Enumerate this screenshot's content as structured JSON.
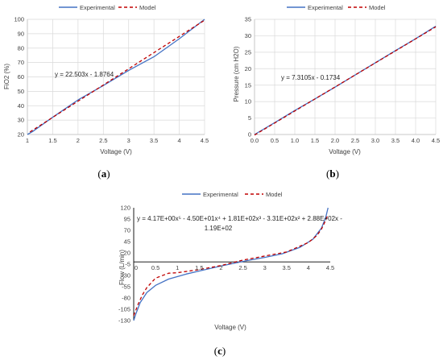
{
  "colors": {
    "experimental": "#4472c4",
    "model": "#c00000",
    "grid": "#d9d9d9",
    "axis": "#bfbfbf"
  },
  "chart_data": [
    {
      "type": "line",
      "panel": "(a)",
      "xlabel": "Voltage (V)",
      "ylabel": "FiO2 (%)",
      "xlim": [
        1,
        4.5
      ],
      "ylim": [
        20,
        100
      ],
      "xticks": [
        1,
        1.5,
        2,
        2.5,
        3,
        3.5,
        4,
        4.5
      ],
      "yticks": [
        20,
        30,
        40,
        50,
        60,
        70,
        80,
        90,
        100
      ],
      "grid": true,
      "legend": "top",
      "equation": "y = 22.503x - 1.8764",
      "series": [
        {
          "name": "Experimental",
          "style": "solid",
          "x": [
            1.0,
            1.1,
            1.5,
            2.0,
            2.5,
            3.0,
            3.5,
            4.0,
            4.5
          ],
          "y": [
            20.0,
            22.0,
            32.0,
            44.0,
            54.0,
            64.5,
            74.0,
            86.5,
            100.0
          ]
        },
        {
          "name": "Model",
          "style": "dashed",
          "x": [
            1.05,
            4.5
          ],
          "y": [
            21.75,
            99.39
          ]
        }
      ]
    },
    {
      "type": "line",
      "panel": "(b)",
      "xlabel": "Voltage (V)",
      "ylabel": "Pressure (cm H2O)",
      "xlim": [
        0,
        4.5
      ],
      "ylim": [
        0,
        35
      ],
      "xticks": [
        0.0,
        0.5,
        1.0,
        1.5,
        2.0,
        2.5,
        3.0,
        3.5,
        4.0,
        4.5
      ],
      "yticks": [
        0,
        5,
        10,
        15,
        20,
        25,
        30,
        35
      ],
      "grid": true,
      "legend": "top",
      "equation": "y = 7.3105x - 0.1734",
      "series": [
        {
          "name": "Experimental",
          "style": "solid",
          "x": [
            0.0,
            0.5,
            1.0,
            1.5,
            2.0,
            2.5,
            3.0,
            3.5,
            4.0,
            4.5
          ],
          "y": [
            0.0,
            3.6,
            7.3,
            10.8,
            14.4,
            18.1,
            21.8,
            25.5,
            29.1,
            32.9
          ]
        },
        {
          "name": "Model",
          "style": "dashed",
          "x": [
            0.0,
            4.5
          ],
          "y": [
            -0.17,
            32.72
          ]
        }
      ]
    },
    {
      "type": "line",
      "panel": "(c)",
      "xlabel": "Voltage (V)",
      "ylabel": "Flow (L/min)",
      "xlim": [
        0,
        4.5
      ],
      "ylim": [
        -130,
        120
      ],
      "xticks": [
        0,
        0.5,
        1,
        1.5,
        2,
        2.5,
        3,
        3.5,
        4,
        4.5
      ],
      "yticks": [
        120,
        95,
        70,
        45,
        20,
        -5,
        -30,
        -55,
        -80,
        -105,
        -130
      ],
      "grid": false,
      "legend": "top",
      "equation_line1": "y = 4.17E+00x⁵ - 4.50E+01x⁴ + 1.81E+02x³ - 3.31E+02x² + 2.88E+02x -",
      "equation_line2": "1.19E+02",
      "series": [
        {
          "name": "Experimental",
          "style": "solid",
          "x": [
            0.0,
            0.05,
            0.15,
            0.3,
            0.5,
            0.8,
            1.2,
            1.6,
            2.0,
            2.2,
            2.6,
            3.0,
            3.4,
            3.8,
            4.1,
            4.3,
            4.4,
            4.45
          ],
          "y": [
            -130,
            -115,
            -90,
            -68,
            -52,
            -38,
            -27,
            -18,
            -9,
            -5,
            3,
            10,
            18,
            32,
            50,
            75,
            100,
            120
          ]
        },
        {
          "name": "Model",
          "style": "dashed",
          "x": [
            0.0,
            0.1,
            0.2,
            0.3,
            0.5,
            0.8,
            1.0,
            1.5,
            2.0,
            2.5,
            3.0,
            3.5,
            4.0,
            4.2,
            4.3,
            4.4,
            4.45
          ],
          "y": [
            -119,
            -94,
            -73,
            -57,
            -36,
            -25,
            -24,
            -17,
            -8,
            4,
            13,
            22,
            43,
            59,
            73,
            93,
            105
          ]
        }
      ]
    }
  ]
}
